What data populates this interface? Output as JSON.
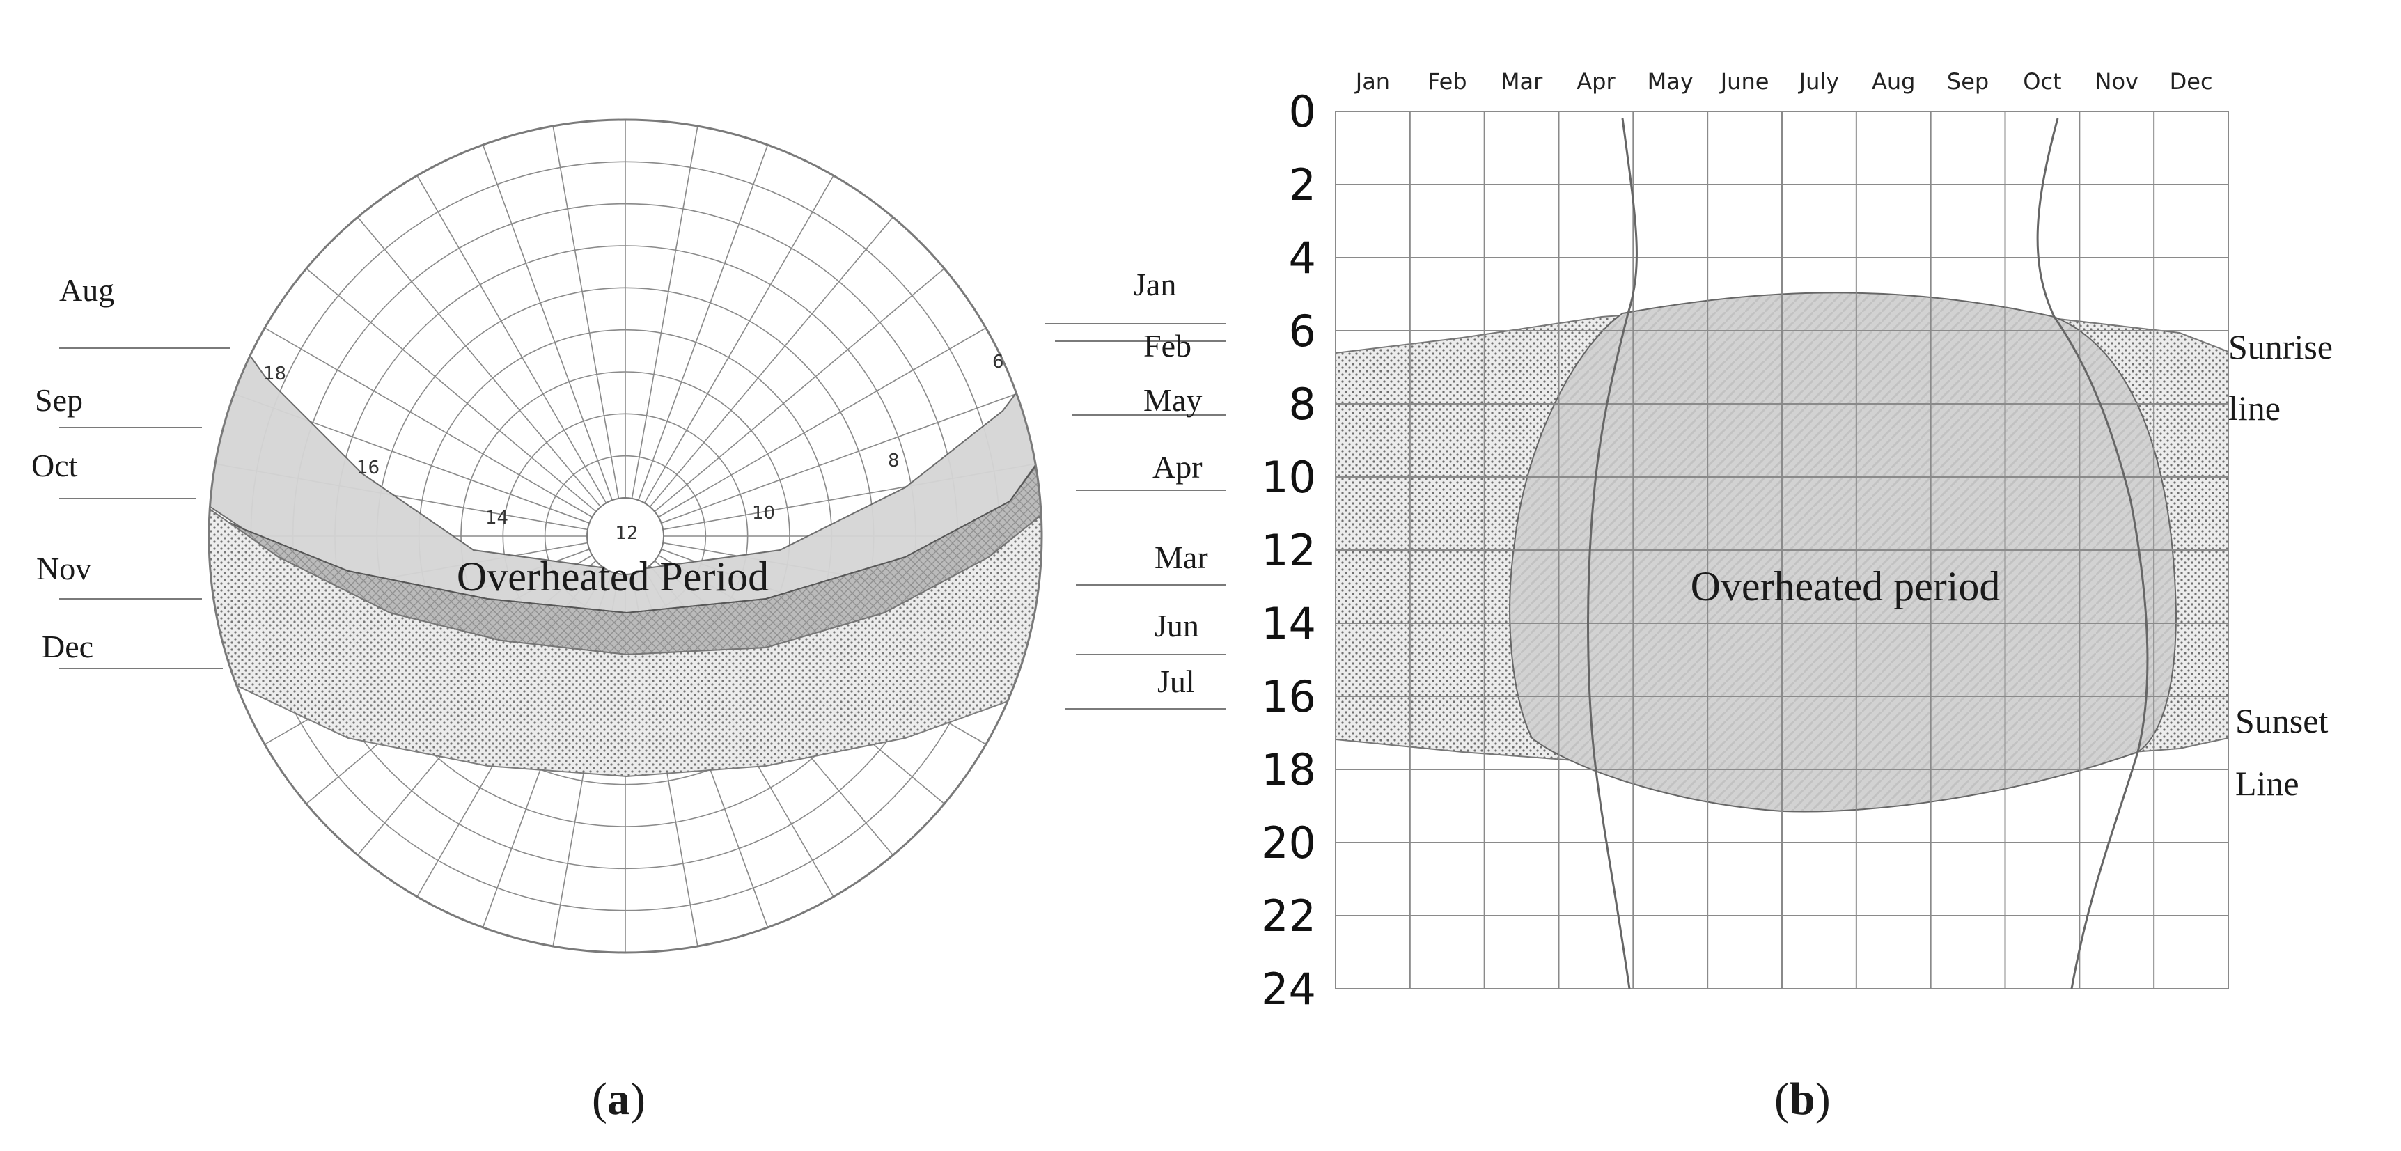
{
  "panel_a": {
    "caption": "a",
    "overheated_label": "Overheated Period",
    "hour_labels": [
      "18",
      "16",
      "14",
      "12",
      "10",
      "8",
      "6"
    ],
    "left_month_labels": [
      "Aug",
      "Sep",
      "Oct",
      "Nov",
      "Dec"
    ],
    "right_month_labels": [
      "Jan",
      "Feb",
      "May",
      "Apr",
      "Mar",
      "Jun",
      "Jul"
    ]
  },
  "panel_b": {
    "caption": "b",
    "overheated_label": "Overheated period",
    "months": [
      "Jan",
      "Feb",
      "Mar",
      "Apr",
      "May",
      "June",
      "July",
      "Aug",
      "Sep",
      "Oct",
      "Nov",
      "Dec"
    ],
    "hour_ticks": [
      "0",
      "2",
      "4",
      "6",
      "8",
      "10",
      "12",
      "14",
      "16",
      "18",
      "20",
      "22",
      "24"
    ],
    "sunrise_label": [
      "Sunrise",
      "line"
    ],
    "sunset_label": [
      "Sunset",
      "Line"
    ]
  },
  "colors": {
    "band_light": "#d6d6d6",
    "band_dark": "#b3b3b3",
    "band_dotted": "#e6e6e6",
    "grid": "#8a8a8a",
    "text": "#1a1a1a"
  }
}
